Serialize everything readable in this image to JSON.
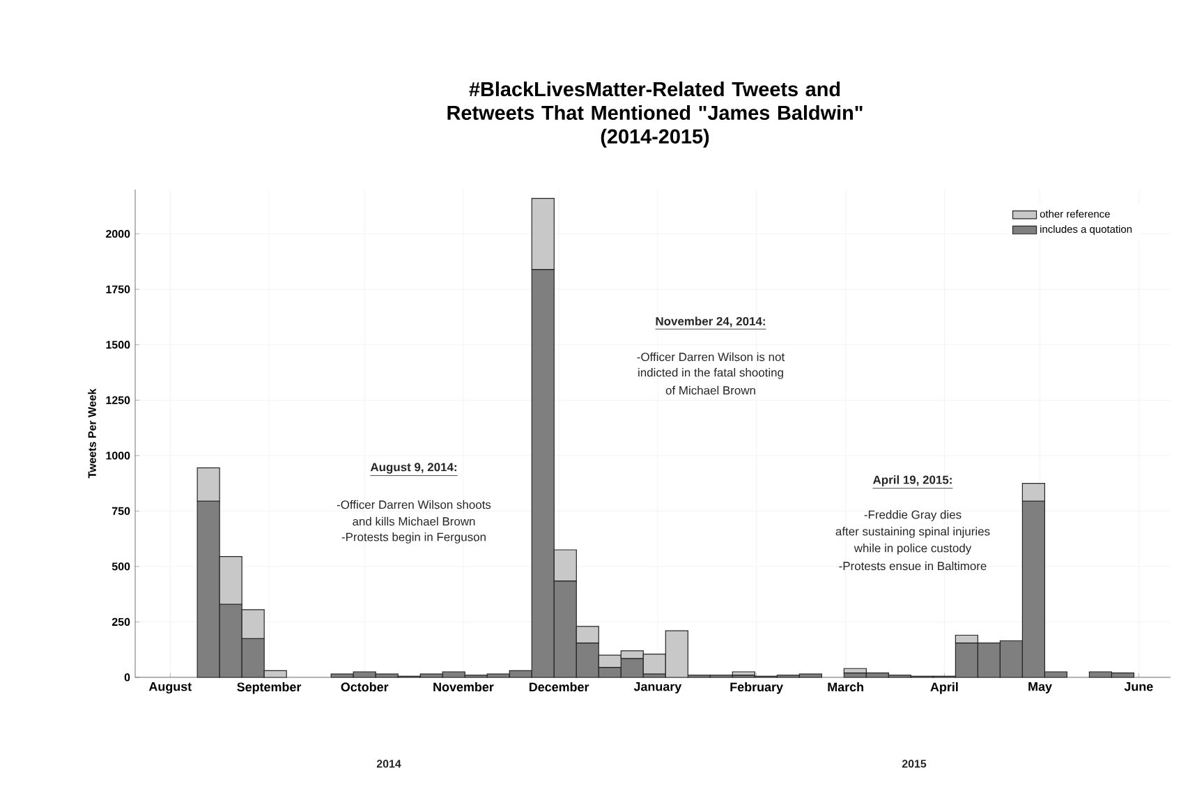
{
  "chart_data": {
    "type": "bar",
    "stacked": true,
    "title": "#BlackLivesMatter-Related Tweets and Retweets That Mentioned \"James Baldwin\"",
    "subtitle": "(2014-2015)",
    "ylabel": "Tweets Per Week",
    "x": [
      "2014-08-13",
      "2014-08-20",
      "2014-08-27",
      "2014-09-03",
      "2014-09-10",
      "2014-09-17",
      "2014-09-24",
      "2014-10-01",
      "2014-10-08",
      "2014-10-15",
      "2014-10-22",
      "2014-10-29",
      "2014-11-05",
      "2014-11-12",
      "2014-11-19",
      "2014-11-26",
      "2014-12-03",
      "2014-12-10",
      "2014-12-17",
      "2014-12-24",
      "2014-12-31",
      "2015-01-07",
      "2015-01-14",
      "2015-01-21",
      "2015-01-28",
      "2015-02-04",
      "2015-02-11",
      "2015-02-18",
      "2015-02-25",
      "2015-03-04",
      "2015-03-11",
      "2015-03-18",
      "2015-03-25",
      "2015-04-01",
      "2015-04-08",
      "2015-04-15",
      "2015-04-22",
      "2015-04-29",
      "2015-05-06",
      "2015-05-13",
      "2015-05-20",
      "2015-05-27"
    ],
    "series": [
      {
        "name": "includes a quotation",
        "color": "#7f7f7f",
        "values": [
          795,
          330,
          175,
          0,
          0,
          0,
          15,
          25,
          15,
          5,
          15,
          25,
          10,
          15,
          30,
          1840,
          435,
          155,
          45,
          85,
          15,
          0,
          10,
          10,
          10,
          5,
          10,
          15,
          0,
          20,
          20,
          10,
          5,
          5,
          155,
          155,
          165,
          795,
          25,
          0,
          25,
          20
        ]
      },
      {
        "name": "other reference",
        "color": "#c8c8c8",
        "values": [
          150,
          215,
          130,
          30,
          0,
          0,
          0,
          0,
          0,
          0,
          0,
          0,
          0,
          0,
          0,
          320,
          140,
          75,
          55,
          35,
          90,
          210,
          0,
          0,
          15,
          0,
          0,
          0,
          0,
          20,
          0,
          0,
          0,
          0,
          35,
          0,
          0,
          80,
          0,
          0,
          0,
          0
        ]
      }
    ],
    "xlim": [
      "2014-07-21",
      "2015-06-11"
    ],
    "xticks": [
      {
        "value": "2014-08-01",
        "label": "August"
      },
      {
        "value": "2014-09-01",
        "label": "September"
      },
      {
        "value": "2014-10-01",
        "label": "October"
      },
      {
        "value": "2014-11-01",
        "label": "November"
      },
      {
        "value": "2014-12-01",
        "label": "December"
      },
      {
        "value": "2015-01-01",
        "label": "January"
      },
      {
        "value": "2015-02-01",
        "label": "February"
      },
      {
        "value": "2015-03-01",
        "label": "March"
      },
      {
        "value": "2015-04-01",
        "label": "April"
      },
      {
        "value": "2015-05-01",
        "label": "May"
      },
      {
        "value": "2015-06-01",
        "label": "June"
      }
    ],
    "ylim": [
      0,
      2200
    ],
    "yticks": [
      0,
      250,
      500,
      750,
      1000,
      1250,
      1500,
      1750,
      2000
    ],
    "grid": true,
    "legend": "top right",
    "annotations": [
      "August 9, 2014:",
      "-Officer Darren Wilson shoots",
      "and kills Michael Brown",
      "-Protests begin in Ferguson",
      "November 24, 2014:",
      "-Officer Darren Wilson is not",
      "indicted in the fatal shooting",
      "of Michael Brown",
      "April 19, 2015:",
      "-Freddie Gray dies",
      "after sustaining spinal injuries",
      "while in police custody",
      "-Protests ensue in Baltimore",
      "2014",
      "2015"
    ]
  }
}
